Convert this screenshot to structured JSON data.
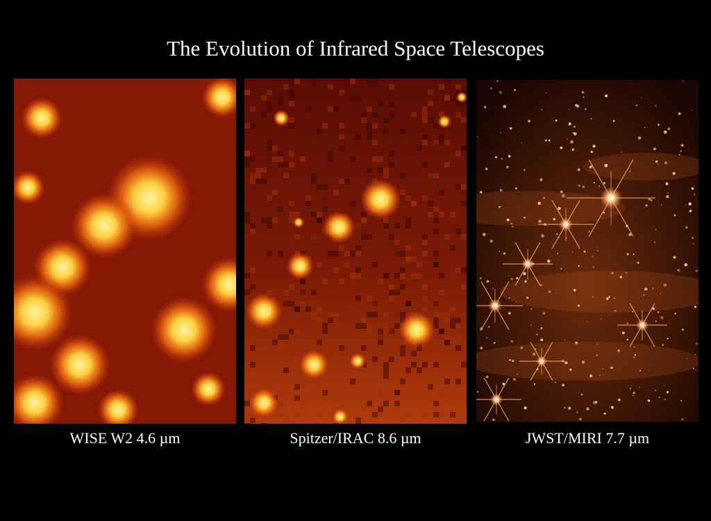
{
  "header": {
    "title": "The Evolution of Infrared Space Telescopes"
  },
  "panels": [
    {
      "caption": "WISE W2 4.6 µm"
    },
    {
      "caption": "Spitzer/IRAC 8.6 µm"
    },
    {
      "caption": "JWST/MIRI 7.7 µm"
    }
  ]
}
